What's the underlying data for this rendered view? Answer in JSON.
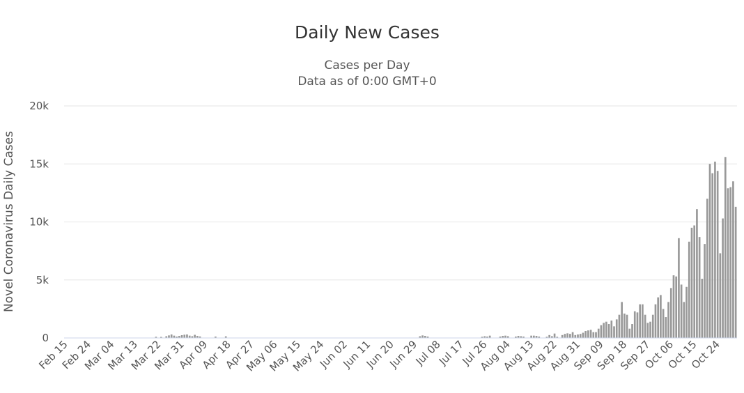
{
  "chart_data": {
    "type": "bar",
    "title": "Daily New Cases",
    "subtitle_lines": [
      "Cases per Day",
      "Data as of 0:00 GMT+0"
    ],
    "xlabel": "",
    "ylabel": "Novel Coronavirus Daily Cases",
    "ylim": [
      0,
      20000
    ],
    "yticks": [
      0,
      5000,
      10000,
      15000,
      20000
    ],
    "ytick_labels": [
      "0",
      "5k",
      "10k",
      "15k",
      "20k"
    ],
    "start_date": "Feb 15",
    "xtick_labels": [
      "Feb 15",
      "Feb 24",
      "Mar 04",
      "Mar 13",
      "Mar 22",
      "Mar 31",
      "Apr 09",
      "Apr 18",
      "Apr 27",
      "May 06",
      "May 15",
      "May 24",
      "Jun 02",
      "Jun 11",
      "Jun 20",
      "Jun 29",
      "Jul 08",
      "Jul 17",
      "Jul 26",
      "Aug 04",
      "Aug 13",
      "Aug 22",
      "Aug 31",
      "Sep 09",
      "Sep 18",
      "Sep 27",
      "Oct 06",
      "Oct 15",
      "Oct 24"
    ],
    "grid": true,
    "legend": "none",
    "bar_color": "#999999",
    "values": [
      0,
      0,
      0,
      0,
      0,
      0,
      0,
      0,
      0,
      0,
      0,
      0,
      0,
      0,
      0,
      0,
      0,
      0,
      0,
      0,
      0,
      0,
      0,
      0,
      0,
      0,
      0,
      0,
      0,
      0,
      0,
      0,
      0,
      0,
      0,
      100,
      0,
      90,
      0,
      150,
      220,
      300,
      200,
      120,
      180,
      240,
      280,
      300,
      200,
      150,
      270,
      180,
      130,
      0,
      0,
      0,
      0,
      0,
      120,
      0,
      0,
      0,
      140,
      0,
      0,
      0,
      0,
      0,
      0,
      0,
      0,
      0,
      0,
      0,
      0,
      0,
      0,
      0,
      0,
      0,
      0,
      0,
      0,
      0,
      0,
      0,
      0,
      0,
      0,
      0,
      0,
      0,
      0,
      0,
      0,
      0,
      0,
      0,
      0,
      0,
      0,
      0,
      0,
      0,
      0,
      0,
      0,
      0,
      0,
      0,
      0,
      0,
      0,
      0,
      0,
      0,
      0,
      0,
      0,
      0,
      0,
      0,
      0,
      0,
      0,
      0,
      0,
      0,
      0,
      0,
      0,
      0,
      0,
      0,
      0,
      0,
      0,
      150,
      220,
      180,
      120,
      0,
      0,
      0,
      0,
      0,
      0,
      0,
      0,
      0,
      0,
      0,
      0,
      0,
      0,
      0,
      0,
      0,
      0,
      0,
      0,
      100,
      150,
      120,
      200,
      0,
      0,
      0,
      120,
      180,
      200,
      150,
      0,
      0,
      120,
      180,
      150,
      120,
      0,
      0,
      200,
      200,
      180,
      120,
      0,
      0,
      100,
      250,
      150,
      380,
      100,
      0,
      250,
      350,
      400,
      350,
      500,
      250,
      300,
      350,
      450,
      600,
      650,
      700,
      500,
      500,
      800,
      1100,
      1300,
      1400,
      1200,
      1500,
      1000,
      1600,
      2000,
      3100,
      2100,
      2000,
      800,
      1200,
      2300,
      2200,
      2900,
      2900,
      2000,
      1300,
      1400,
      2000,
      2900,
      3500,
      3700,
      2500,
      1800,
      3100,
      4300,
      5400,
      5300,
      8600,
      4600,
      3100,
      4400,
      8300,
      9500,
      9700,
      11100,
      8700,
      5100,
      8100,
      12000,
      15000,
      14200,
      15200,
      14400,
      7300,
      10300,
      15600,
      12900,
      13000,
      13500,
      11300
    ]
  }
}
